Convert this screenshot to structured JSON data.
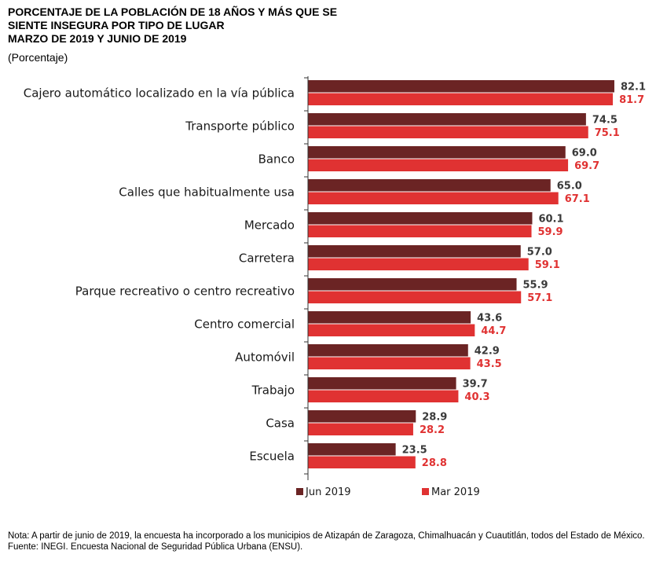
{
  "chart_data": {
    "type": "bar",
    "orientation": "horizontal",
    "title": "PORCENTAJE DE LA POBLACIÓN DE 18 AÑOS Y MÁS QUE SE SIENTE INSEGURA POR TIPO DE LUGAR MARZO DE 2019 Y JUNIO DE 2019",
    "title_lines": [
      "PORCENTAJE DE LA POBLACIÓN DE 18 AÑOS Y MÁS QUE SE",
      "SIENTE INSEGURA POR TIPO DE LUGAR",
      "MARZO DE 2019 Y JUNIO DE 2019"
    ],
    "subtitle": "(Porcentaje)",
    "categories": [
      "Cajero automático localizado en la vía pública",
      "Transporte público",
      "Banco",
      "Calles que habitualmente usa",
      "Mercado",
      "Carretera",
      "Parque recreativo o centro recreativo",
      "Centro comercial",
      "Automóvil",
      "Trabajo",
      "Casa",
      "Escuela"
    ],
    "series": [
      {
        "name": "Jun 2019",
        "color": "#6b2424",
        "values": [
          82.1,
          74.5,
          69.0,
          65.0,
          60.1,
          57.0,
          55.9,
          43.6,
          42.9,
          39.7,
          28.9,
          23.5
        ],
        "labels": [
          "82.1",
          "74.5",
          "69.0",
          "65.0",
          "60.1",
          "57.0",
          "55.9",
          "43.6",
          "42.9",
          "39.7",
          "28.9",
          "23.5"
        ]
      },
      {
        "name": "Mar 2019",
        "color": "#e03232",
        "values": [
          81.7,
          75.1,
          69.7,
          67.1,
          59.9,
          59.1,
          57.1,
          44.7,
          43.5,
          40.3,
          28.2,
          28.8
        ],
        "labels": [
          "81.7",
          "75.1",
          "69.7",
          "67.1",
          "59.9",
          "59.1",
          "57.1",
          "44.7",
          "43.5",
          "40.3",
          "28.2",
          "28.8"
        ]
      }
    ],
    "xlim": [
      0,
      100
    ],
    "grid": false,
    "legend": "bottom",
    "data_labels": true
  },
  "notes": {
    "nota": "Nota: A partir de junio de 2019, la encuesta ha incorporado a los municipios de Atizapán de Zaragoza, Chimalhuacán y Cuautitlán, todos del Estado de México.",
    "fuente": "Fuente: INEGI. Encuesta Nacional de Seguridad Pública Urbana (ENSU)."
  }
}
